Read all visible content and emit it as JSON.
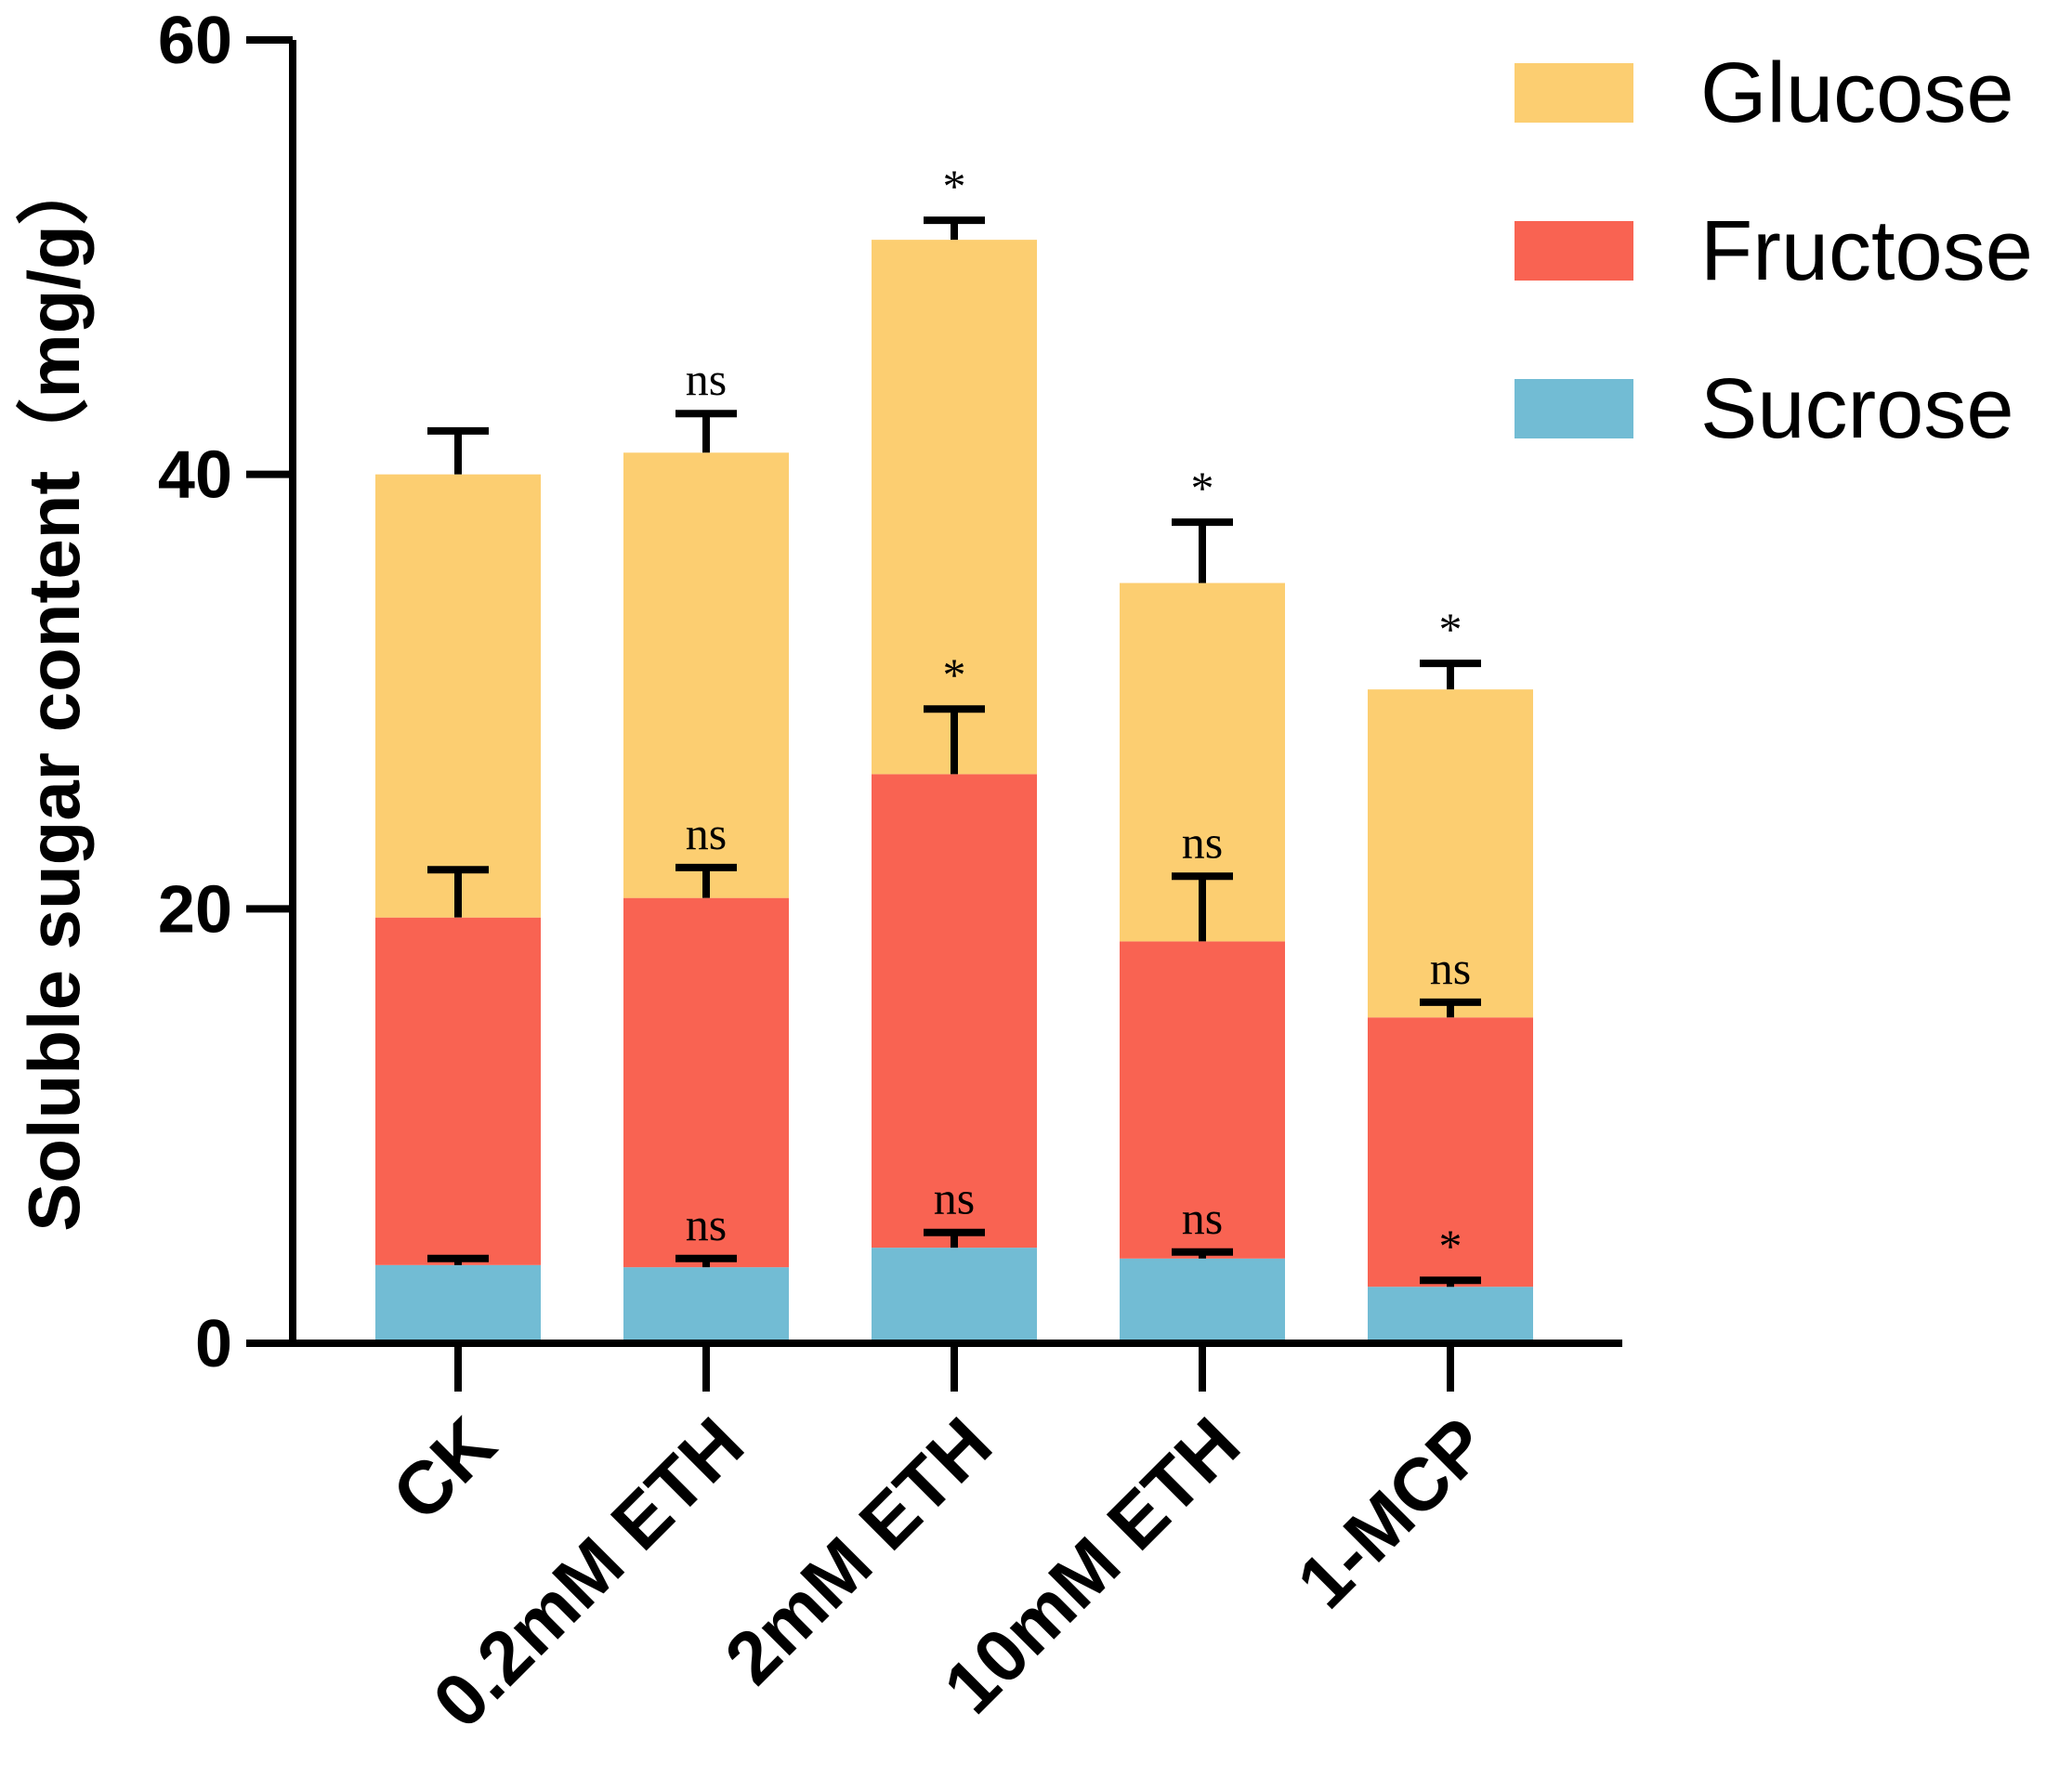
{
  "chart_data": {
    "type": "bar",
    "stacked": true,
    "categories": [
      "CK",
      "0.2mM ETH",
      "2mM ETH",
      "10mM ETH",
      "1-MCP"
    ],
    "ylabel": "Soluble sugar content（mg/g）",
    "ylim": [
      0,
      60
    ],
    "yticks": [
      0,
      20,
      40,
      60
    ],
    "legend_position": "top-right",
    "series": [
      {
        "name": "Sucrose",
        "color": "#72BCD4",
        "values": [
          3.6,
          3.5,
          4.4,
          3.9,
          2.6
        ],
        "errors": [
          0.3,
          0.4,
          0.7,
          0.3,
          0.3
        ],
        "significance": [
          "",
          "ns",
          "ns",
          "ns",
          "*"
        ]
      },
      {
        "name": "Fructose",
        "color": "#F96352",
        "values": [
          16.0,
          17.0,
          21.8,
          14.6,
          12.4
        ],
        "errors": [
          2.2,
          1.4,
          3.0,
          3.0,
          0.7
        ],
        "significance": [
          "",
          "ns",
          "*",
          "ns",
          "ns"
        ]
      },
      {
        "name": "Glucose",
        "color": "#FCCE71",
        "values": [
          20.4,
          20.5,
          24.6,
          16.5,
          15.1
        ],
        "errors": [
          2.0,
          1.8,
          0.9,
          2.8,
          1.2
        ],
        "significance": [
          "",
          "ns",
          "*",
          "*",
          "*"
        ]
      }
    ]
  }
}
